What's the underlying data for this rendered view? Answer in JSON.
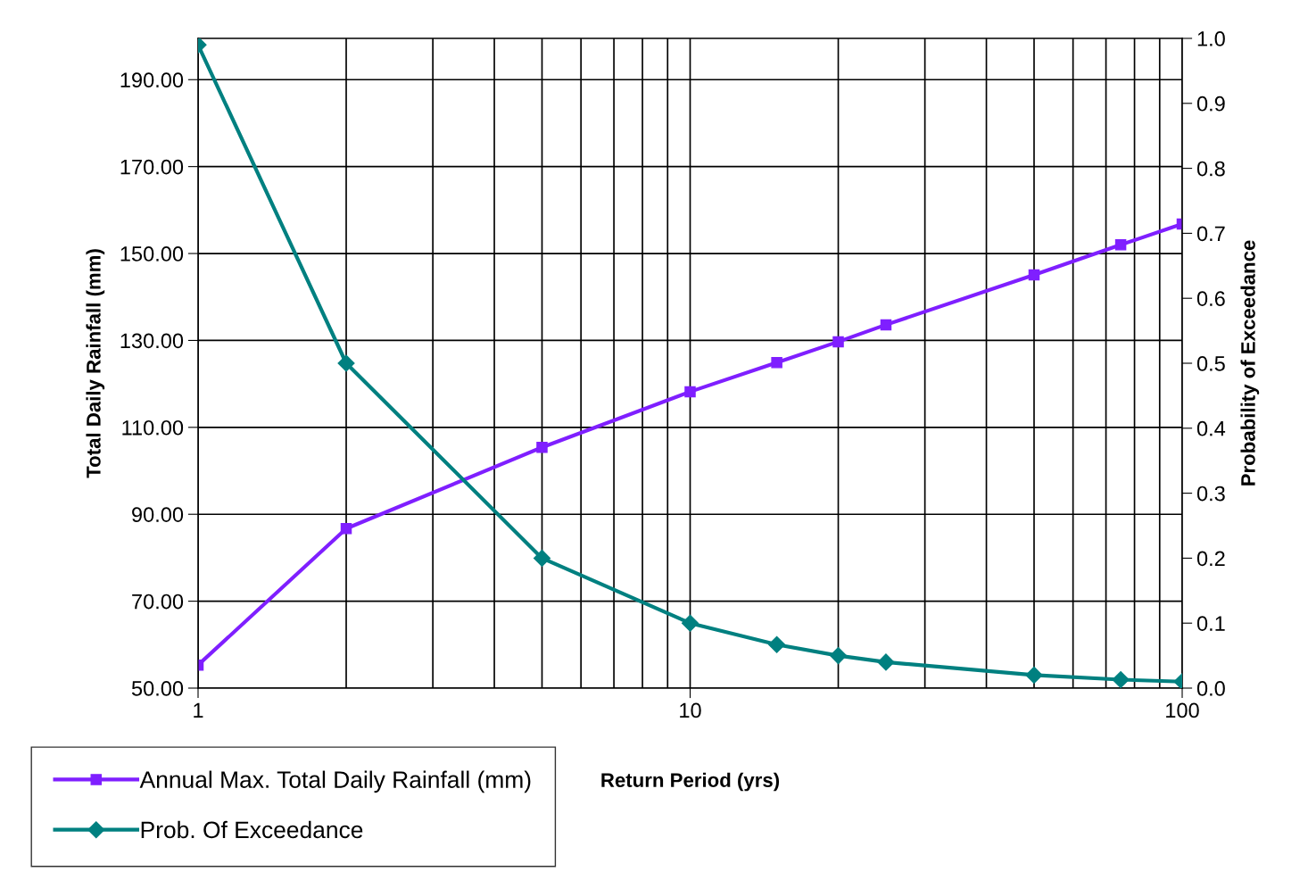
{
  "chart_data": {
    "type": "line",
    "xlabel": "Return Period (yrs)",
    "ylabel": "Total Daily Rainfall (mm)",
    "y2label": "Probability of Exceedance",
    "x": [
      1,
      2,
      5,
      10,
      15,
      20,
      25,
      50,
      75,
      100
    ],
    "series": [
      {
        "name": "Annual Max. Total Daily Rainfall (mm)",
        "color": "#7f1fff",
        "marker": "square",
        "values": [
          55.3,
          86.7,
          105.4,
          118.2,
          124.9,
          129.7,
          133.6,
          145.1,
          152.0,
          156.8
        ]
      },
      {
        "name": "Prob. Of Exceedance",
        "color": "#008080",
        "marker": "diamond",
        "axis": "y2",
        "values": [
          0.99,
          0.5,
          0.2,
          0.1,
          0.067,
          0.05,
          0.04,
          0.02,
          0.013,
          0.01
        ]
      }
    ],
    "log": "x",
    "xlim": [
      1,
      100
    ],
    "xticks": [
      1,
      10,
      100
    ],
    "ylim": [
      50,
      199.5
    ],
    "yticks": [
      {
        "value": 50,
        "label": "50.00"
      },
      {
        "value": 70,
        "label": "70.00"
      },
      {
        "value": 90,
        "label": "90.00"
      },
      {
        "value": 110,
        "label": "110.00"
      },
      {
        "value": 130,
        "label": "130.00"
      },
      {
        "value": 150,
        "label": "150.00"
      },
      {
        "value": 170,
        "label": "170.00"
      },
      {
        "value": 190,
        "label": "190.00"
      }
    ],
    "y2lim": [
      0,
      1.0
    ],
    "y2ticks": [
      {
        "value": 0,
        "label": "0.0"
      },
      {
        "value": 0.1,
        "label": "0.1"
      },
      {
        "value": 0.2,
        "label": "0.2"
      },
      {
        "value": 0.3,
        "label": "0.3"
      },
      {
        "value": 0.4,
        "label": "0.4"
      },
      {
        "value": 0.5,
        "label": "0.5"
      },
      {
        "value": 0.6,
        "label": "0.6"
      },
      {
        "value": 0.7,
        "label": "0.7"
      },
      {
        "value": 0.8,
        "label": "0.8"
      },
      {
        "value": 0.9,
        "label": "0.9"
      },
      {
        "value": 1.0,
        "label": "1.0"
      }
    ],
    "grid": true,
    "legend": "bottom left",
    "line_style": "solid"
  }
}
